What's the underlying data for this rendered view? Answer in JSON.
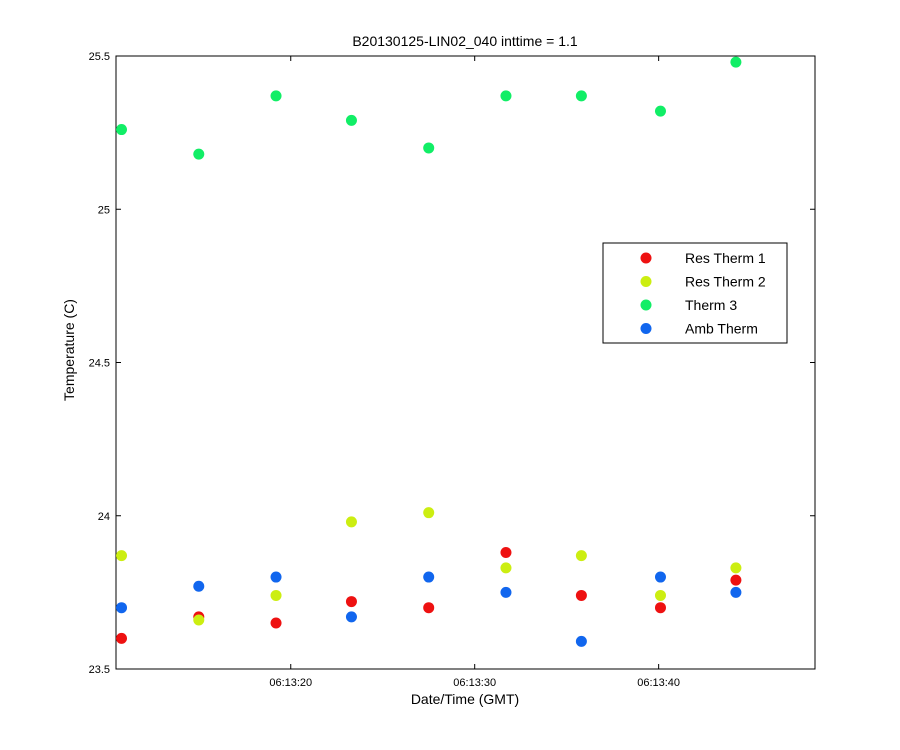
{
  "chart_data": {
    "type": "scatter",
    "title": "B20130125-LIN02_040 inttime = 1.1",
    "xlabel": "Date/Time (GMT)",
    "ylabel": "Temperature (C)",
    "x_unit": "seconds past 06:13",
    "xlim": [
      10.5,
      48.5
    ],
    "ylim": [
      23.5,
      25.5
    ],
    "x_ticks": [
      {
        "value": 20,
        "label": "06:13:20"
      },
      {
        "value": 30,
        "label": "06:13:30"
      },
      {
        "value": 40,
        "label": "06:13:40"
      }
    ],
    "y_ticks": [
      {
        "value": 23.5,
        "label": "23.5"
      },
      {
        "value": 24,
        "label": "24"
      },
      {
        "value": 24.5,
        "label": "24.5"
      },
      {
        "value": 25,
        "label": "25"
      },
      {
        "value": 25.5,
        "label": "25.5"
      }
    ],
    "grid": false,
    "legend_position": "right",
    "x": [
      10.8,
      15.0,
      19.2,
      23.3,
      27.5,
      31.7,
      35.8,
      40.1,
      44.2
    ],
    "series": [
      {
        "name": "Res Therm 1",
        "color": "#ee1111",
        "values": [
          23.6,
          23.67,
          23.65,
          23.72,
          23.7,
          23.88,
          23.74,
          23.7,
          23.79
        ]
      },
      {
        "name": "Res Therm 2",
        "color": "#ccee11",
        "values": [
          23.87,
          23.66,
          23.74,
          23.98,
          24.01,
          23.83,
          23.87,
          23.74,
          23.83
        ]
      },
      {
        "name": "Therm 3",
        "color": "#11ee66",
        "values": [
          25.26,
          25.18,
          25.37,
          25.29,
          25.2,
          25.37,
          25.37,
          25.32,
          25.48
        ]
      },
      {
        "name": "Amb Therm",
        "color": "#1166ee",
        "values": [
          23.7,
          23.77,
          23.8,
          23.67,
          23.8,
          23.75,
          23.59,
          23.8,
          23.75
        ]
      }
    ]
  }
}
